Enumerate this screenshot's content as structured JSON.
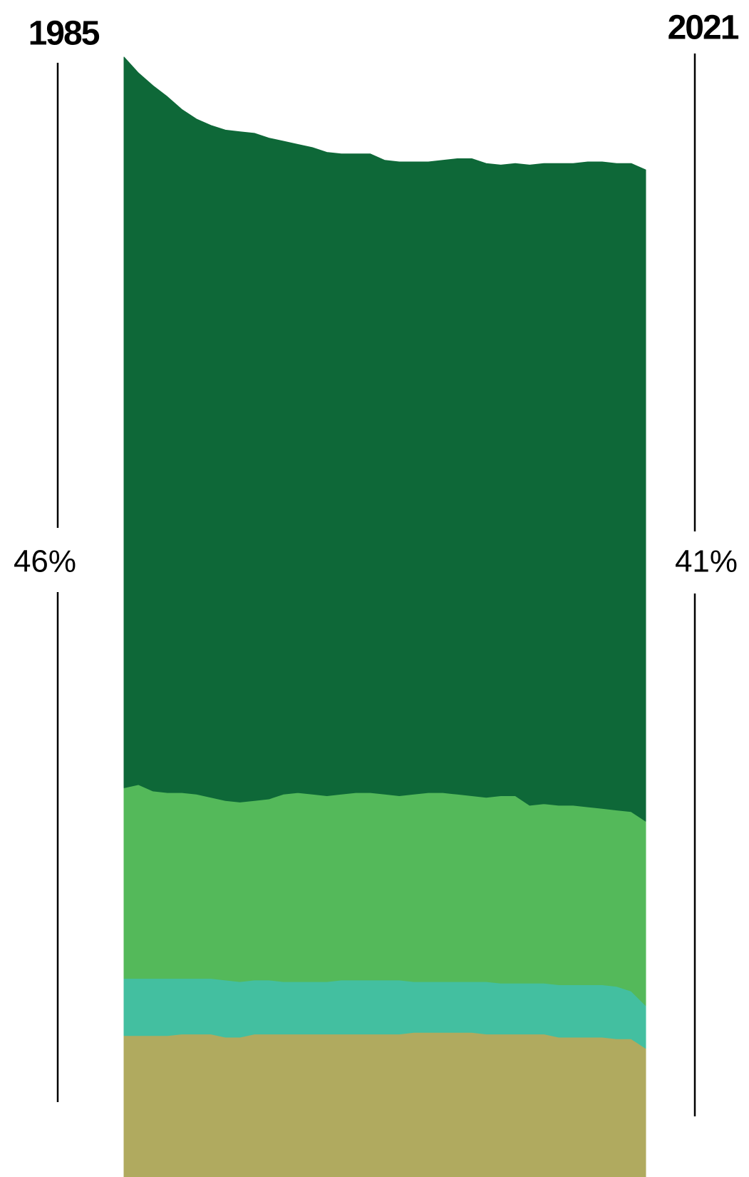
{
  "chart_data": {
    "type": "stacked_area",
    "x": [
      1985,
      1986,
      1987,
      1988,
      1989,
      1990,
      1991,
      1992,
      1993,
      1994,
      1995,
      1996,
      1997,
      1998,
      1999,
      2000,
      2001,
      2002,
      2003,
      2004,
      2005,
      2006,
      2007,
      2008,
      2009,
      2010,
      2011,
      2012,
      2013,
      2014,
      2015,
      2016,
      2017,
      2018,
      2019,
      2020,
      2021
    ],
    "xlim": [
      1985,
      2021
    ],
    "ylim": [
      0,
      70.5
    ],
    "start_label": "1985",
    "end_label": "2021",
    "start_value_label": "46%",
    "end_value_label": "41%",
    "series": [
      {
        "color": "#b0aa5f",
        "values": [
          8.9,
          8.9,
          8.9,
          8.9,
          9.0,
          9.0,
          9.0,
          8.8,
          8.8,
          9.0,
          9.0,
          9.0,
          9.0,
          9.0,
          9.0,
          9.0,
          9.0,
          9.0,
          9.0,
          9.0,
          9.1,
          9.1,
          9.1,
          9.1,
          9.1,
          9.0,
          9.0,
          9.0,
          9.0,
          9.0,
          8.8,
          8.8,
          8.8,
          8.8,
          8.7,
          8.7,
          8.1
        ]
      },
      {
        "color": "#43bfa0",
        "values": [
          3.6,
          3.6,
          3.6,
          3.6,
          3.5,
          3.5,
          3.5,
          3.6,
          3.5,
          3.4,
          3.4,
          3.3,
          3.3,
          3.3,
          3.3,
          3.4,
          3.4,
          3.4,
          3.4,
          3.4,
          3.2,
          3.2,
          3.2,
          3.2,
          3.2,
          3.3,
          3.2,
          3.2,
          3.2,
          3.2,
          3.3,
          3.3,
          3.3,
          3.3,
          3.3,
          3.0,
          2.7
        ]
      },
      {
        "color": "#54b95a",
        "values": [
          12.0,
          12.2,
          11.8,
          11.7,
          11.7,
          11.6,
          11.4,
          11.3,
          11.3,
          11.3,
          11.4,
          11.8,
          11.9,
          11.8,
          11.7,
          11.7,
          11.8,
          11.8,
          11.7,
          11.6,
          11.8,
          11.9,
          11.9,
          11.8,
          11.7,
          11.6,
          11.8,
          11.8,
          11.2,
          11.3,
          11.3,
          11.3,
          11.2,
          11.1,
          11.1,
          11.3,
          11.6
        ]
      },
      {
        "color": "#0e6838",
        "values": [
          46,
          44.8,
          44.4,
          43.8,
          43.0,
          42.5,
          42.3,
          42.2,
          42.2,
          42.0,
          41.6,
          41.1,
          40.8,
          40.7,
          40.5,
          40.3,
          40.2,
          40.2,
          39.9,
          39.9,
          39.8,
          39.7,
          39.8,
          40.0,
          40.1,
          39.9,
          39.7,
          39.8,
          40.3,
          40.3,
          40.4,
          40.4,
          40.6,
          40.7,
          40.7,
          40.8,
          41
        ]
      }
    ]
  }
}
